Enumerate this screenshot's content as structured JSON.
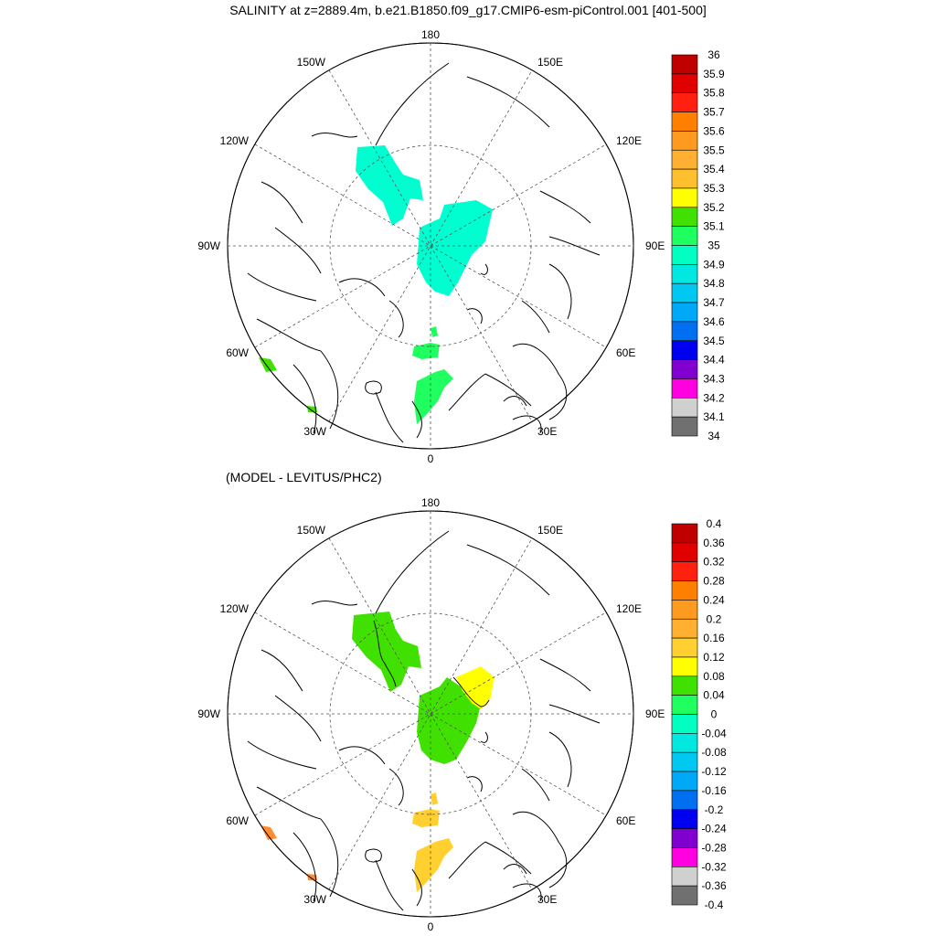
{
  "title": "SALINITY at z=2889.4m, b.e21.B1850.f09_g17.CMIP6-esm-piControl.001 [401-500]",
  "subtitle": "(MODEL - LEVITUS/PHC2)",
  "longitude_labels": {
    "top": "180",
    "bottom": "0",
    "left": "90W",
    "right": "90E",
    "upper_left_1": "150W",
    "upper_left_2": "120W",
    "upper_right_1": "150E",
    "upper_right_2": "120E",
    "lower_left_1": "60W",
    "lower_left_2": "30W",
    "lower_right_1": "60E",
    "lower_right_2": "30E"
  },
  "colorbar_top": {
    "labels": [
      "36",
      "35.9",
      "35.8",
      "35.7",
      "35.6",
      "35.5",
      "35.4",
      "35.3",
      "35.2",
      "35.1",
      "35",
      "34.9",
      "34.8",
      "34.7",
      "34.6",
      "34.5",
      "34.4",
      "34.3",
      "34.2",
      "34.1",
      "34"
    ],
    "colors": [
      "#c00000",
      "#e00000",
      "#ff2010",
      "#ff8000",
      "#ff9a20",
      "#ffb030",
      "#ffc030",
      "#ffff00",
      "#40e000",
      "#20ff60",
      "#00ffc0",
      "#00e8e0",
      "#00c8f0",
      "#00a8f8",
      "#0070f0",
      "#0000f0",
      "#8000d0",
      "#ff00e0",
      "#d0d0d0",
      "#707070"
    ]
  },
  "colorbar_bottom": {
    "labels": [
      "0.4",
      "0.36",
      "0.32",
      "0.28",
      "0.24",
      "0.2",
      "0.16",
      "0.12",
      "0.08",
      "0.04",
      "0",
      "-0.04",
      "-0.08",
      "-0.12",
      "-0.16",
      "-0.2",
      "-0.24",
      "-0.28",
      "-0.32",
      "-0.36",
      "-0.4"
    ],
    "colors": [
      "#c00000",
      "#e00000",
      "#ff2010",
      "#ff8000",
      "#ff9a20",
      "#ffb030",
      "#ffd030",
      "#ffff00",
      "#40e000",
      "#20ff60",
      "#00ffc0",
      "#00e8e0",
      "#00c8f0",
      "#00a8f8",
      "#0070f0",
      "#0000f0",
      "#8000d0",
      "#ff00e0",
      "#d0d0d0",
      "#707070"
    ]
  },
  "field_colors_top": {
    "region_a": "#00ffd0",
    "region_b": "#00ffd0",
    "region_c": "#20ff60",
    "region_d": "#20ff60",
    "region_e": "#20ff60",
    "region_f": "#40e000",
    "region_g": "#40e000"
  },
  "field_colors_bottom": {
    "region_a": "#40e000",
    "region_b": "#40e000",
    "region_b_north": "#ffff00",
    "region_c": "#ffd030",
    "region_d": "#ffd030",
    "region_e": "#ffd030",
    "region_f": "#ff8c30",
    "region_g": "#ff8c30"
  }
}
